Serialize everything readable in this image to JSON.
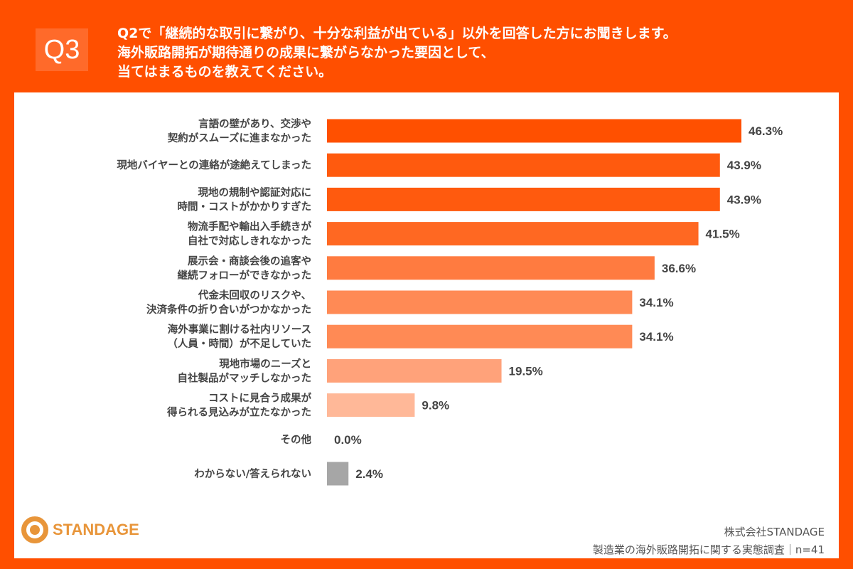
{
  "header": {
    "badge": "Q3",
    "lines": [
      "Q2で「継続的な取引に繋がり、十分な利益が出ている」以外を回答した方にお聞きします。",
      "海外販路開拓が期待通りの成果に繋がらなかった要因として、",
      "当てはまるものを教えてください。"
    ]
  },
  "footer": {
    "logo": "STANDAGE",
    "company": "株式会社STANDAGE",
    "survey": "製造業の海外販路開拓に関する実態調査｜n=41"
  },
  "chart_data": {
    "type": "bar",
    "orientation": "horizontal",
    "unit": "%",
    "categories": [
      [
        "言語の壁があり、交渉や",
        "契約がスムーズに進まなかった"
      ],
      [
        "現地バイヤーとの連絡が途絶えてしまった"
      ],
      [
        "現地の規制や認証対応に",
        "時間・コストがかかりすぎた"
      ],
      [
        "物流手配や輸出入手続きが",
        "自社で対応しきれなかった"
      ],
      [
        "展示会・商談会後の追客や",
        "継続フォローができなかった"
      ],
      [
        "代金未回収のリスクや、",
        "決済条件の折り合いがつかなかった"
      ],
      [
        "海外事業に割ける社内リソース",
        "（人員・時間）が不足していた"
      ],
      [
        "現地市場のニーズと",
        "自社製品がマッチしなかった"
      ],
      [
        "コストに見合う成果が",
        "得られる見込みが立たなかった"
      ],
      [
        "その他"
      ],
      [
        "わからない/答えられない"
      ]
    ],
    "values": [
      46.3,
      43.9,
      43.9,
      41.5,
      36.6,
      34.1,
      34.1,
      19.5,
      9.8,
      0.0,
      2.4
    ],
    "labels": [
      "46.3%",
      "43.9%",
      "43.9%",
      "41.5%",
      "36.6%",
      "34.1%",
      "34.1%",
      "19.5%",
      "9.8%",
      "0.0%",
      "2.4%"
    ],
    "colors": [
      "#FF5000",
      "#FF5A0E",
      "#FF5A0E",
      "#FF6822",
      "#FF7B40",
      "#FF8A55",
      "#FF8A55",
      "#FFA27A",
      "#FFB898",
      "#FFC8B0",
      "#A6A6A6"
    ]
  }
}
